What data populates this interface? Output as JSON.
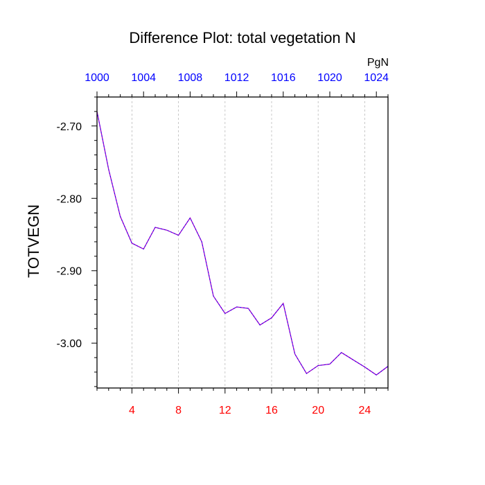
{
  "colors": {
    "series_line": "#a000c8",
    "series_dash": "#0000ff",
    "bottom_ticks": "#ff0000",
    "top_ticks": "#0000ff",
    "grid": "#bbbbbb"
  },
  "chart_data": {
    "type": "line",
    "title": "Difference Plot: total vegetation N",
    "ylabel": "TOTVEGN",
    "top_axis_units": "PgN",
    "grid": "vertical dashed",
    "xlim": [
      1,
      26
    ],
    "ylim": [
      -3.062,
      -2.66
    ],
    "x_ticks": [
      4,
      8,
      12,
      16,
      20,
      24
    ],
    "x_tick_labels": [
      "4",
      "8",
      "12",
      "16",
      "20",
      "24"
    ],
    "y_ticks": [
      -2.7,
      -2.8,
      -2.9,
      -3.0
    ],
    "y_tick_labels": [
      "-2.70",
      "-2.80",
      "-2.90",
      "-3.00"
    ],
    "top_ticks": [
      1,
      5,
      9,
      13,
      17,
      21,
      25
    ],
    "top_tick_labels": [
      "1000",
      "1004",
      "1008",
      "1012",
      "1016",
      "1020",
      "1024"
    ],
    "series": [
      {
        "x": [
          1,
          2,
          3,
          4,
          5,
          6,
          7,
          8,
          9,
          10,
          11,
          12,
          13,
          14,
          15,
          16,
          17,
          18,
          19,
          20,
          21,
          22,
          23,
          24,
          25,
          26
        ],
        "values": [
          -2.68,
          -2.76,
          -2.825,
          -2.862,
          -2.87,
          -2.84,
          -2.844,
          -2.851,
          -2.827,
          -2.86,
          -2.935,
          -2.959,
          -2.95,
          -2.952,
          -2.975,
          -2.965,
          -2.945,
          -3.015,
          -3.042,
          -3.031,
          -3.029,
          -3.013,
          -3.023,
          -3.033,
          -3.044,
          -3.032
        ]
      }
    ]
  }
}
